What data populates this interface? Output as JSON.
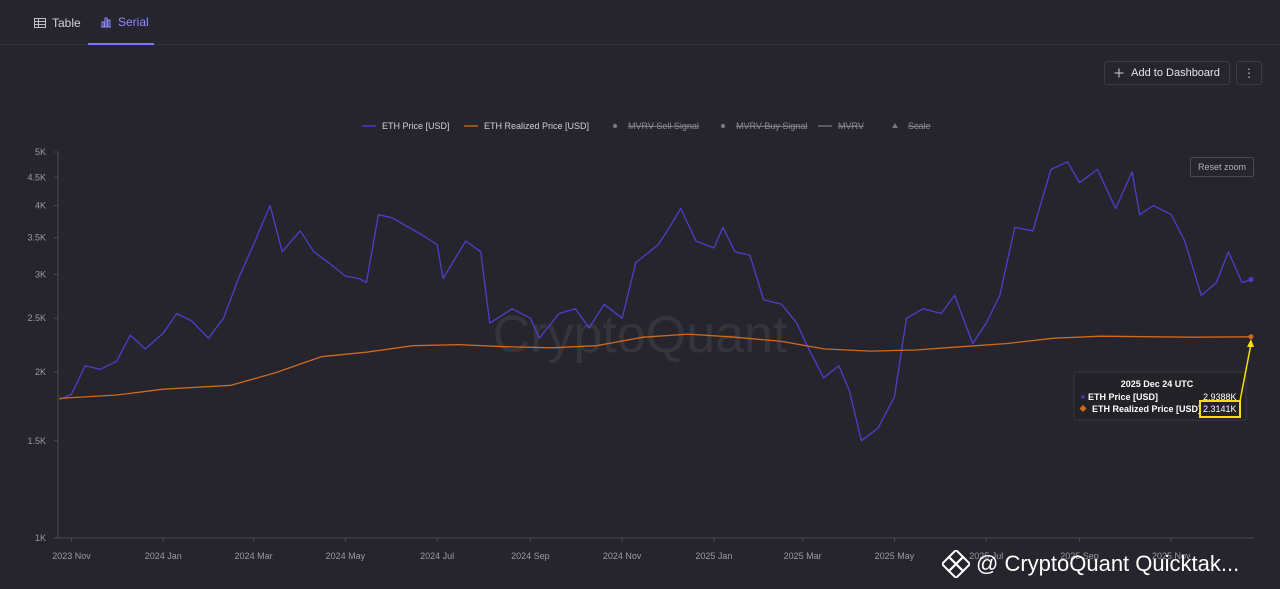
{
  "tabs": [
    {
      "label": "Table",
      "active": false
    },
    {
      "label": "Serial",
      "active": true
    }
  ],
  "toolbar": {
    "add_label": "Add to Dashboard",
    "more_label": "⋮",
    "reset_zoom_label": "Reset zoom"
  },
  "legend": [
    {
      "label": "ETH Price [USD]",
      "color": "#4b3fc9",
      "enabled": true,
      "marker": "line"
    },
    {
      "label": "ETH Realized Price [USD]",
      "color": "#d06a1a",
      "enabled": true,
      "marker": "line"
    },
    {
      "label": "MVRV Sell Signal",
      "color": "#777777",
      "enabled": false,
      "marker": "dot"
    },
    {
      "label": "MVRV Buy Signal",
      "color": "#777777",
      "enabled": false,
      "marker": "dot"
    },
    {
      "label": "MVRV",
      "color": "#777777",
      "enabled": false,
      "marker": "line"
    },
    {
      "label": "Scale",
      "color": "#777777",
      "enabled": false,
      "marker": "triangle"
    }
  ],
  "watermark_text": "CryptoQuant",
  "footer_watermark": "@ CryptoQuant Quicktak...",
  "tooltip": {
    "date": "2025 Dec 24 UTC",
    "rows": [
      {
        "label": "ETH Price [USD]",
        "value": "2.9388K",
        "color": "#4b3fc9"
      },
      {
        "label": "ETH Realized Price [USD]",
        "value": "2.3141K",
        "color": "#d06a1a"
      }
    ]
  },
  "chart_data": {
    "type": "line",
    "yscale": "log",
    "ylim": [
      1000,
      5000
    ],
    "y_ticks": [
      {
        "value": 5000,
        "label": "5K"
      },
      {
        "value": 4500,
        "label": "4.5K"
      },
      {
        "value": 4000,
        "label": "4K"
      },
      {
        "value": 3500,
        "label": "3.5K"
      },
      {
        "value": 3000,
        "label": "3K"
      },
      {
        "value": 2500,
        "label": "2.5K"
      },
      {
        "value": 2000,
        "label": "2K"
      },
      {
        "value": 1500,
        "label": "1.5K"
      },
      {
        "value": 1000,
        "label": "1K"
      }
    ],
    "xlim": [
      "2023-10-23",
      "2025-12-26"
    ],
    "x_ticks": [
      {
        "date": "2023-11-01",
        "label": "2023 Nov"
      },
      {
        "date": "2024-01-01",
        "label": "2024 Jan"
      },
      {
        "date": "2024-03-01",
        "label": "2024 Mar"
      },
      {
        "date": "2024-05-01",
        "label": "2024 May"
      },
      {
        "date": "2024-07-01",
        "label": "2024 Jul"
      },
      {
        "date": "2024-09-01",
        "label": "2024 Sep"
      },
      {
        "date": "2024-11-01",
        "label": "2024 Nov"
      },
      {
        "date": "2025-01-01",
        "label": "2025 Jan"
      },
      {
        "date": "2025-03-01",
        "label": "2025 Mar"
      },
      {
        "date": "2025-05-01",
        "label": "2025 May"
      },
      {
        "date": "2025-07-01",
        "label": "2025 Jul"
      },
      {
        "date": "2025-09-01",
        "label": "2025 Sep"
      },
      {
        "date": "2025-11-01",
        "label": "2025 Nov"
      }
    ],
    "series": [
      {
        "name": "ETH Price [USD]",
        "color": "#4b3fc9",
        "points": [
          [
            "2023-10-24",
            1780
          ],
          [
            "2023-11-01",
            1820
          ],
          [
            "2023-11-10",
            2050
          ],
          [
            "2023-11-20",
            2020
          ],
          [
            "2023-12-01",
            2090
          ],
          [
            "2023-12-10",
            2330
          ],
          [
            "2023-12-20",
            2200
          ],
          [
            "2024-01-01",
            2350
          ],
          [
            "2024-01-10",
            2550
          ],
          [
            "2024-01-20",
            2470
          ],
          [
            "2024-01-31",
            2300
          ],
          [
            "2024-02-10",
            2500
          ],
          [
            "2024-02-20",
            2950
          ],
          [
            "2024-03-01",
            3400
          ],
          [
            "2024-03-12",
            4000
          ],
          [
            "2024-03-20",
            3300
          ],
          [
            "2024-04-01",
            3600
          ],
          [
            "2024-04-10",
            3300
          ],
          [
            "2024-04-20",
            3150
          ],
          [
            "2024-05-01",
            2980
          ],
          [
            "2024-05-10",
            2950
          ],
          [
            "2024-05-15",
            2900
          ],
          [
            "2024-05-23",
            3850
          ],
          [
            "2024-06-01",
            3800
          ],
          [
            "2024-06-10",
            3680
          ],
          [
            "2024-06-20",
            3550
          ],
          [
            "2024-07-01",
            3400
          ],
          [
            "2024-07-05",
            2950
          ],
          [
            "2024-07-20",
            3450
          ],
          [
            "2024-07-30",
            3300
          ],
          [
            "2024-08-05",
            2450
          ],
          [
            "2024-08-20",
            2600
          ],
          [
            "2024-09-01",
            2500
          ],
          [
            "2024-09-07",
            2300
          ],
          [
            "2024-09-20",
            2550
          ],
          [
            "2024-10-01",
            2600
          ],
          [
            "2024-10-10",
            2400
          ],
          [
            "2024-10-20",
            2650
          ],
          [
            "2024-11-01",
            2500
          ],
          [
            "2024-11-10",
            3150
          ],
          [
            "2024-11-25",
            3400
          ],
          [
            "2024-12-01",
            3600
          ],
          [
            "2024-12-10",
            3950
          ],
          [
            "2024-12-20",
            3450
          ],
          [
            "2025-01-01",
            3350
          ],
          [
            "2025-01-07",
            3650
          ],
          [
            "2025-01-15",
            3300
          ],
          [
            "2025-01-25",
            3250
          ],
          [
            "2025-02-03",
            2700
          ],
          [
            "2025-02-15",
            2650
          ],
          [
            "2025-02-25",
            2450
          ],
          [
            "2025-03-05",
            2200
          ],
          [
            "2025-03-15",
            1950
          ],
          [
            "2025-03-25",
            2050
          ],
          [
            "2025-04-01",
            1850
          ],
          [
            "2025-04-09",
            1500
          ],
          [
            "2025-04-20",
            1580
          ],
          [
            "2025-05-01",
            1800
          ],
          [
            "2025-05-09",
            2500
          ],
          [
            "2025-05-20",
            2600
          ],
          [
            "2025-06-01",
            2550
          ],
          [
            "2025-06-10",
            2750
          ],
          [
            "2025-06-22",
            2250
          ],
          [
            "2025-07-01",
            2450
          ],
          [
            "2025-07-10",
            2750
          ],
          [
            "2025-07-20",
            3650
          ],
          [
            "2025-08-01",
            3600
          ],
          [
            "2025-08-13",
            4650
          ],
          [
            "2025-08-24",
            4800
          ],
          [
            "2025-09-01",
            4400
          ],
          [
            "2025-09-13",
            4650
          ],
          [
            "2025-09-25",
            3950
          ],
          [
            "2025-10-06",
            4600
          ],
          [
            "2025-10-11",
            3850
          ],
          [
            "2025-10-20",
            4000
          ],
          [
            "2025-11-01",
            3850
          ],
          [
            "2025-11-10",
            3450
          ],
          [
            "2025-11-21",
            2750
          ],
          [
            "2025-12-01",
            2900
          ],
          [
            "2025-12-09",
            3300
          ],
          [
            "2025-12-18",
            2900
          ],
          [
            "2025-12-24",
            2938.8
          ]
        ]
      },
      {
        "name": "ETH Realized Price [USD]",
        "color": "#d06a1a",
        "points": [
          [
            "2023-10-24",
            1790
          ],
          [
            "2023-12-01",
            1815
          ],
          [
            "2024-01-01",
            1860
          ],
          [
            "2024-02-15",
            1890
          ],
          [
            "2024-03-15",
            1990
          ],
          [
            "2024-04-15",
            2130
          ],
          [
            "2024-05-15",
            2170
          ],
          [
            "2024-06-15",
            2230
          ],
          [
            "2024-07-15",
            2240
          ],
          [
            "2024-08-15",
            2220
          ],
          [
            "2024-09-15",
            2210
          ],
          [
            "2024-10-15",
            2230
          ],
          [
            "2024-11-15",
            2310
          ],
          [
            "2024-12-15",
            2340
          ],
          [
            "2025-01-15",
            2310
          ],
          [
            "2025-02-15",
            2270
          ],
          [
            "2025-03-15",
            2200
          ],
          [
            "2025-04-15",
            2180
          ],
          [
            "2025-05-15",
            2190
          ],
          [
            "2025-06-15",
            2220
          ],
          [
            "2025-07-15",
            2250
          ],
          [
            "2025-08-15",
            2300
          ],
          [
            "2025-09-15",
            2320
          ],
          [
            "2025-10-15",
            2315
          ],
          [
            "2025-11-15",
            2310
          ],
          [
            "2025-12-24",
            2314.1
          ]
        ]
      }
    ]
  }
}
